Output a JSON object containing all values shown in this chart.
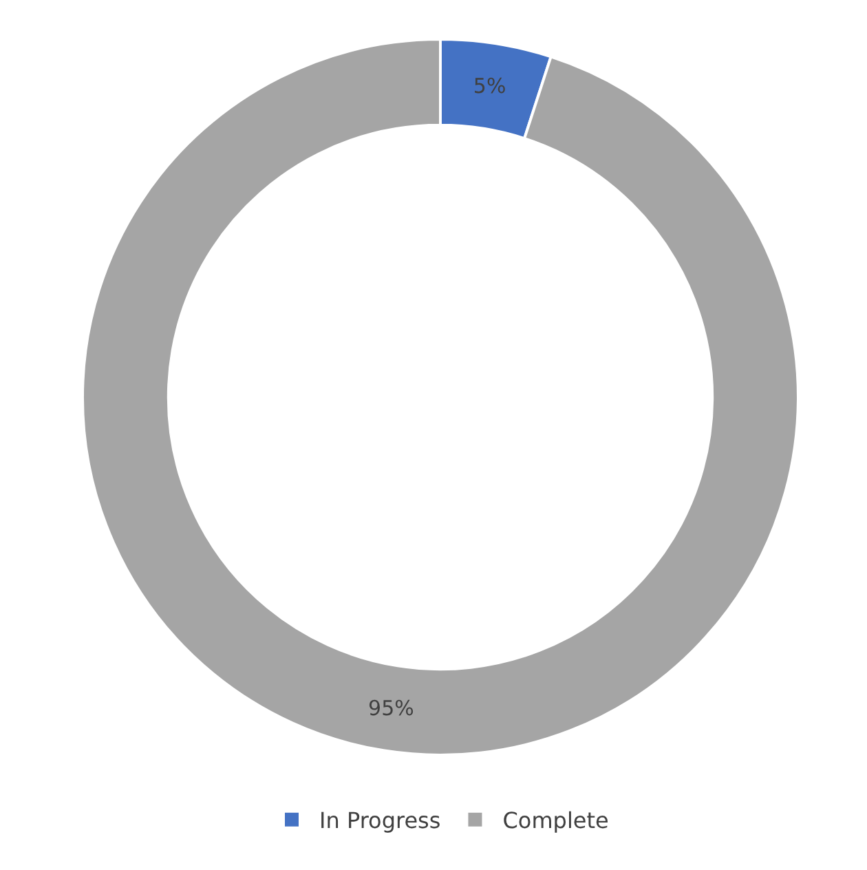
{
  "chart_data": {
    "type": "donut",
    "categories": [
      "In Progress",
      "Complete"
    ],
    "values": [
      5,
      95
    ],
    "colors": [
      "#4472c4",
      "#a5a5a5"
    ],
    "value_labels": [
      "5%",
      "95%"
    ],
    "legend": "bottom"
  }
}
